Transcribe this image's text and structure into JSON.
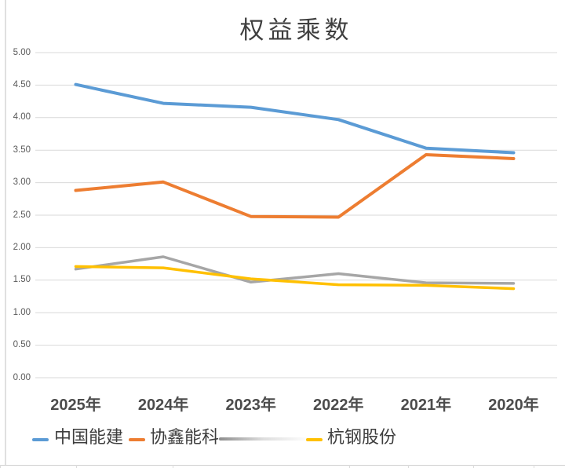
{
  "chart_data": {
    "type": "line",
    "title": "权益乘数",
    "categories": [
      "2025年",
      "2024年",
      "2023年",
      "2022年",
      "2021年",
      "2020年"
    ],
    "series": [
      {
        "name": "中国能建",
        "color": "#5B9BD5",
        "values": [
          4.51,
          4.22,
          4.16,
          3.97,
          3.53,
          3.46
        ]
      },
      {
        "name": "协鑫能科",
        "color": "#ED7D31",
        "values": [
          2.88,
          3.01,
          2.48,
          2.47,
          3.43,
          3.37
        ]
      },
      {
        "name": "",
        "color": "#A6A6A6",
        "legend_visible": false,
        "values": [
          1.67,
          1.86,
          1.47,
          1.6,
          1.46,
          1.45
        ]
      },
      {
        "name": "杭钢股份",
        "color": "#FFC000",
        "values": [
          1.71,
          1.69,
          1.52,
          1.43,
          1.42,
          1.37
        ]
      }
    ],
    "xlabel": "",
    "ylabel": "",
    "ylim": [
      0,
      5
    ],
    "ytick_step": 0.5,
    "yticks": [
      {
        "label": "5.00",
        "value": 5.0
      },
      {
        "label": "4.50",
        "value": 4.5
      },
      {
        "label": "4.00",
        "value": 4.0
      },
      {
        "label": "3.50",
        "value": 3.5
      },
      {
        "label": "3.00",
        "value": 3.0
      },
      {
        "label": "2.50",
        "value": 2.5
      },
      {
        "label": "2.00",
        "value": 2.0
      },
      {
        "label": "1.50",
        "value": 1.5
      },
      {
        "label": "1.00",
        "value": 1.0
      },
      {
        "label": "0.50",
        "value": 0.5
      },
      {
        "label": "0.00",
        "value": 0.0
      }
    ],
    "grid": true,
    "legend_position": "bottom",
    "legend": {
      "items": [
        {
          "label": "中国能建",
          "color": "#5B9BD5"
        },
        {
          "label": "协鑫能科",
          "color": "#ED7D31"
        },
        {
          "label": "杭钢股份",
          "color": "#FFC000"
        }
      ],
      "smudge_note": "gray series legend entry is scribbled out with a fading gray streak"
    }
  }
}
